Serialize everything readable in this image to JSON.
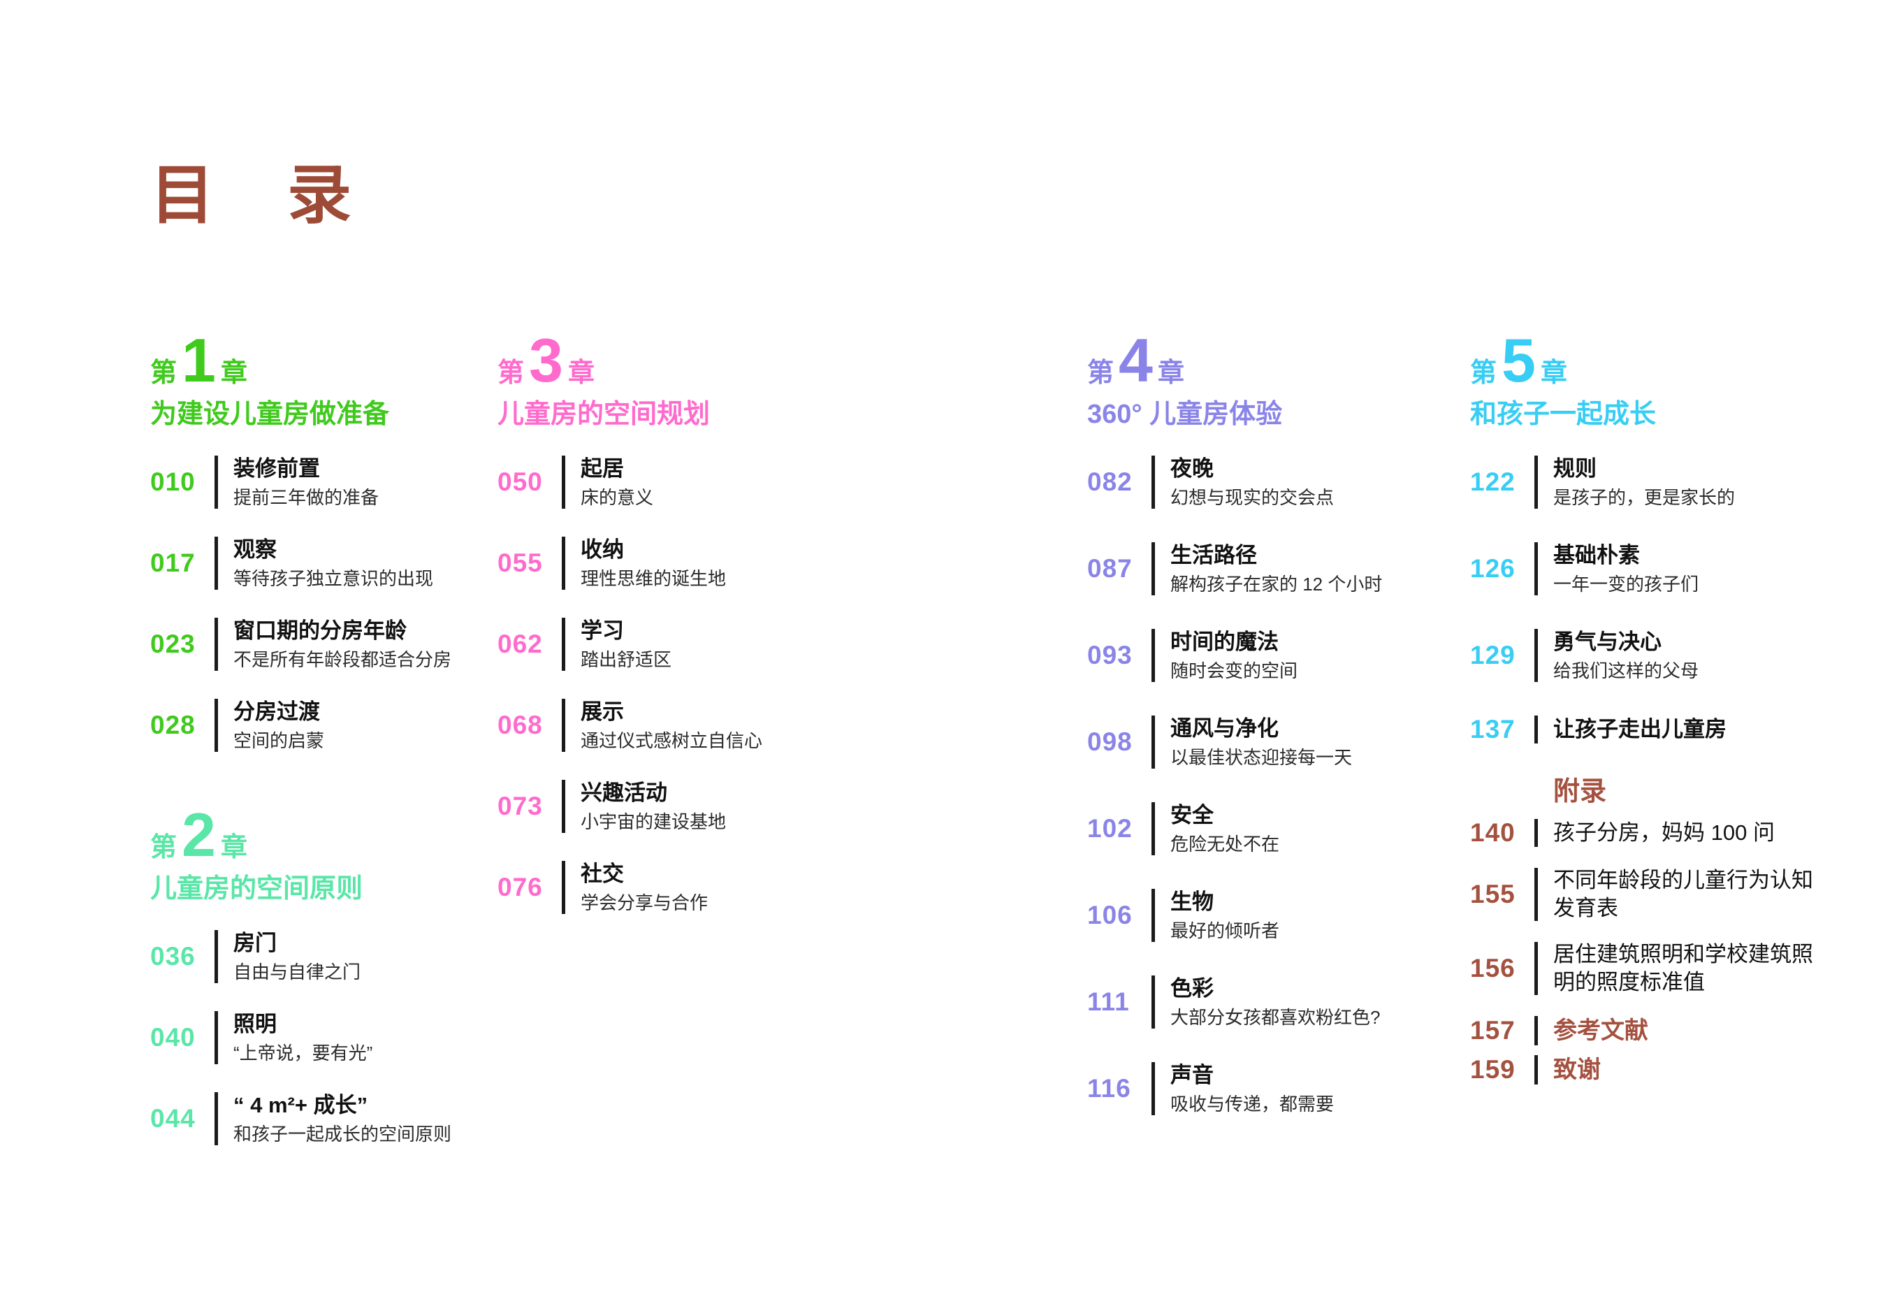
{
  "title": "目　录",
  "colors": {
    "title_brown": "#9d4a37",
    "chapter1_green": "#3fca1d",
    "chapter2_mint": "#59e6a7",
    "chapter3_pink": "#ff6bcd",
    "chapter4_purple": "#8a84e8",
    "chapter5_cyan": "#38cdf4",
    "appendix_brown": "#a4513f",
    "body_text": "#151515"
  },
  "columns": [
    {
      "sections": [
        {
          "type": "chapter",
          "prefix": "第",
          "num": "1",
          "suffix": "章",
          "name": "为建设儿童房做准备",
          "accent": "#3fca1d",
          "entries": [
            {
              "page": "010",
              "title": "装修前置",
              "subtitle": "提前三年做的准备"
            },
            {
              "page": "017",
              "title": "观察",
              "subtitle": "等待孩子独立意识的出现"
            },
            {
              "page": "023",
              "title": "窗口期的分房年龄",
              "subtitle": "不是所有年龄段都适合分房"
            },
            {
              "page": "028",
              "title": "分房过渡",
              "subtitle": "空间的启蒙"
            }
          ]
        },
        {
          "type": "chapter",
          "prefix": "第",
          "num": "2",
          "suffix": "章",
          "name": "儿童房的空间原则",
          "accent": "#59e6a7",
          "entries": [
            {
              "page": "036",
              "title": "房门",
              "subtitle": "自由与自律之门"
            },
            {
              "page": "040",
              "title": "照明",
              "subtitle": "“上帝说，要有光”"
            },
            {
              "page": "044",
              "title": "“ 4 m²+ 成长”",
              "subtitle": "和孩子一起成长的空间原则"
            }
          ]
        }
      ]
    },
    {
      "sections": [
        {
          "type": "chapter",
          "prefix": "第",
          "num": "3",
          "suffix": "章",
          "name": "儿童房的空间规划",
          "accent": "#ff6bcd",
          "entries": [
            {
              "page": "050",
              "title": "起居",
              "subtitle": "床的意义"
            },
            {
              "page": "055",
              "title": "收纳",
              "subtitle": "理性思维的诞生地"
            },
            {
              "page": "062",
              "title": "学习",
              "subtitle": "踏出舒适区"
            },
            {
              "page": "068",
              "title": "展示",
              "subtitle": "通过仪式感树立自信心"
            },
            {
              "page": "073",
              "title": "兴趣活动",
              "subtitle": "小宇宙的建设基地"
            },
            {
              "page": "076",
              "title": "社交",
              "subtitle": "学会分享与合作"
            }
          ]
        }
      ]
    },
    {
      "sections": [
        {
          "type": "chapter",
          "prefix": "第",
          "num": "4",
          "suffix": "章",
          "name": "360° 儿童房体验",
          "accent": "#8a84e8",
          "entries": [
            {
              "page": "082",
              "title": "夜晚",
              "subtitle": "幻想与现实的交会点"
            },
            {
              "page": "087",
              "title": "生活路径",
              "subtitle": "解构孩子在家的 12 个小时"
            },
            {
              "page": "093",
              "title": "时间的魔法",
              "subtitle": "随时会变的空间"
            },
            {
              "page": "098",
              "title": "通风与净化",
              "subtitle": "以最佳状态迎接每一天"
            },
            {
              "page": "102",
              "title": "安全",
              "subtitle": "危险无处不在"
            },
            {
              "page": "106",
              "title": "生物",
              "subtitle": "最好的倾听者"
            },
            {
              "page": "111",
              "title": "色彩",
              "subtitle": "大部分女孩都喜欢粉红色?"
            },
            {
              "page": "116",
              "title": "声音",
              "subtitle": "吸收与传递，都需要"
            }
          ]
        }
      ]
    },
    {
      "sections": [
        {
          "type": "chapter",
          "prefix": "第",
          "num": "5",
          "suffix": "章",
          "name": "和孩子一起成长",
          "accent": "#38cdf4",
          "entries": [
            {
              "page": "122",
              "title": "规则",
              "subtitle": "是孩子的，更是家长的"
            },
            {
              "page": "126",
              "title": "基础朴素",
              "subtitle": "一年一变的孩子们"
            },
            {
              "page": "129",
              "title": "勇气与决心",
              "subtitle": "给我们这样的父母"
            },
            {
              "page": "137",
              "title": "让孩子走出儿童房"
            }
          ]
        },
        {
          "type": "appendix",
          "name": "附录",
          "accent": "#a4513f",
          "entries": [
            {
              "page": "140",
              "title": "孩子分房，妈妈 100 问"
            },
            {
              "page": "155",
              "title": "不同年龄段的儿童行为认知发育表"
            },
            {
              "page": "156",
              "title": "居住建筑照明和学校建筑照明的照度标准值"
            },
            {
              "page": "157",
              "title": "参考文献",
              "emphasis": true
            },
            {
              "page": "159",
              "title": "致谢",
              "emphasis": true
            }
          ]
        }
      ]
    }
  ]
}
